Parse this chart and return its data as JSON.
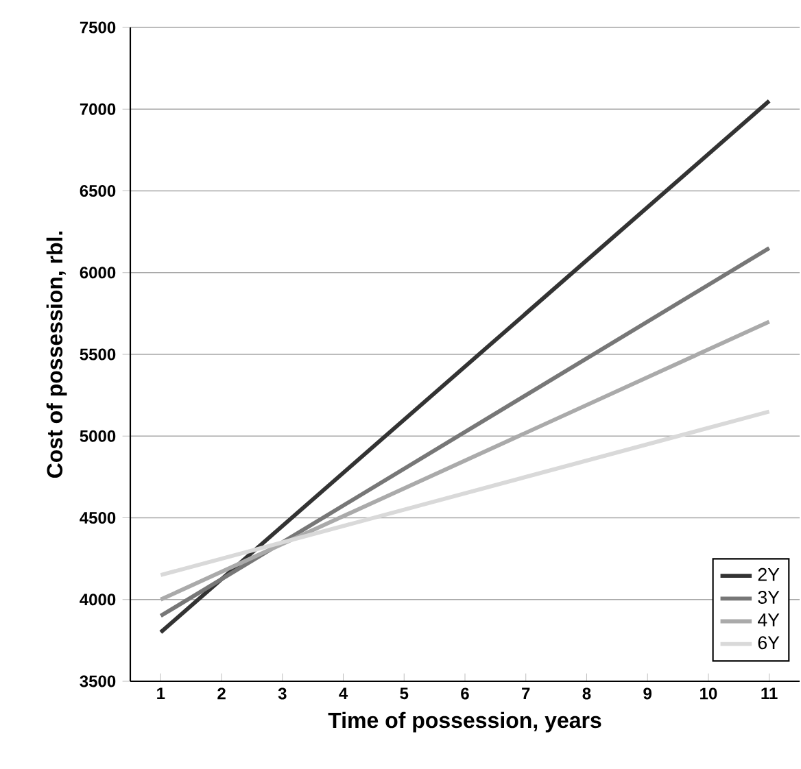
{
  "chart_data": {
    "type": "line",
    "xlabel": "Time of possession, years",
    "ylabel": "Cost of possession, rbl.",
    "xlim": [
      0.5,
      11.5
    ],
    "xticks": [
      1,
      2,
      3,
      4,
      5,
      6,
      7,
      8,
      9,
      10,
      11
    ],
    "ylim": [
      3500,
      7500
    ],
    "yticks": [
      3500,
      4000,
      4500,
      5000,
      5500,
      6000,
      6500,
      7000,
      7500
    ],
    "grid": "y",
    "legend": "bottom right",
    "marker": "none",
    "line_style": "solid",
    "x": [
      1,
      11
    ],
    "series": [
      {
        "name": "2Y",
        "color": "#333333",
        "values": [
          3800,
          7050
        ]
      },
      {
        "name": "3Y",
        "color": "#777777",
        "values": [
          3900,
          6150
        ]
      },
      {
        "name": "4Y",
        "color": "#aaaaaa",
        "values": [
          4000,
          5700
        ]
      },
      {
        "name": "6Y",
        "color": "#d9d9d9",
        "values": [
          4150,
          5150
        ]
      }
    ]
  }
}
